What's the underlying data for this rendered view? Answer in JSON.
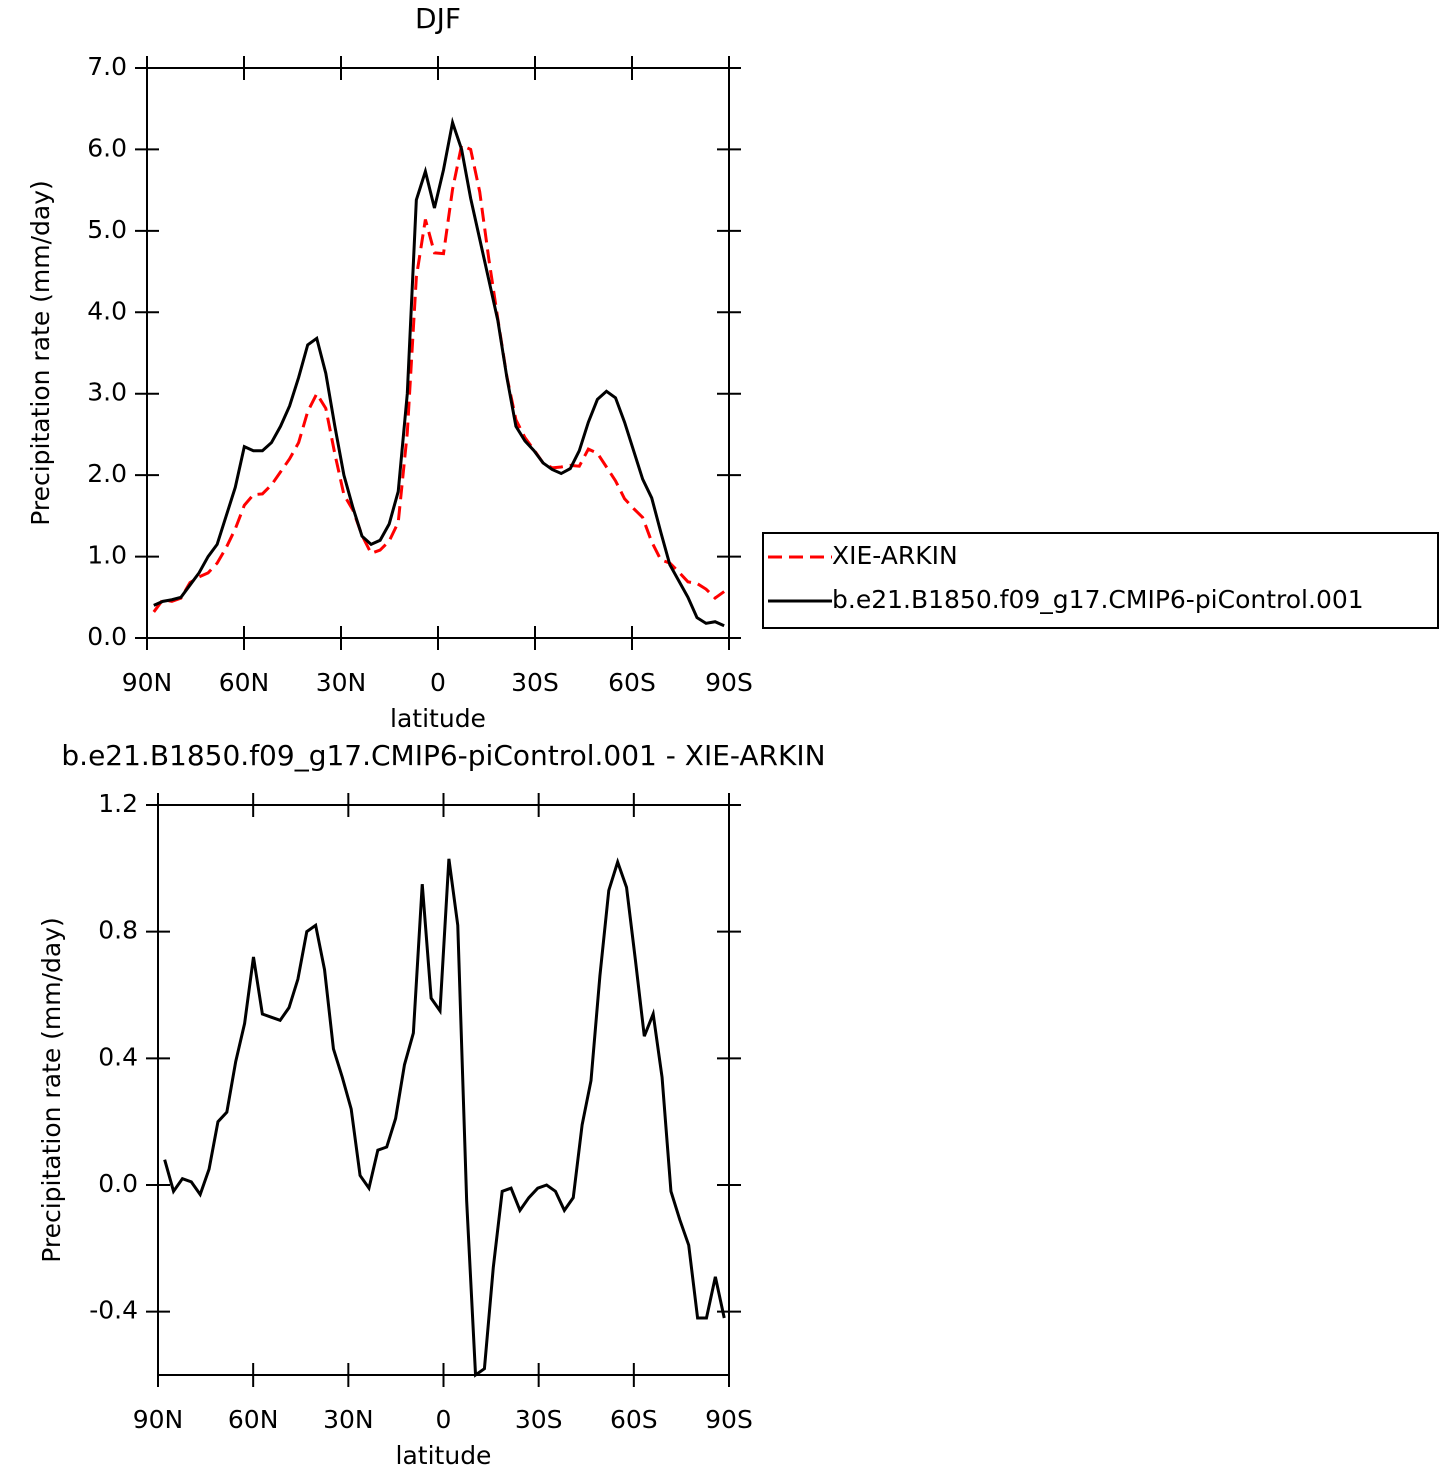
{
  "chart_data": [
    {
      "type": "line",
      "title": "DJF",
      "x_label": "latitude",
      "y_label": "Precipitation rate (mm/day)",
      "x": [
        87.9,
        85.1,
        82.3,
        79.5,
        76.7,
        73.9,
        71.1,
        68.3,
        65.5,
        62.7,
        59.9,
        57.1,
        54.3,
        51.5,
        48.7,
        45.9,
        43.1,
        40.3,
        37.5,
        34.7,
        31.9,
        29.1,
        26.3,
        23.5,
        20.7,
        17.9,
        15.1,
        12.3,
        9.5,
        6.7,
        3.9,
        1.1,
        -1.7,
        -4.5,
        -7.3,
        -10.1,
        -12.9,
        -15.7,
        -18.5,
        -21.3,
        -24.1,
        -26.9,
        -29.7,
        -32.5,
        -35.3,
        -38.1,
        -40.9,
        -43.7,
        -46.5,
        -49.3,
        -52.1,
        -54.9,
        -57.7,
        -60.5,
        -63.3,
        -66.1,
        -68.9,
        -71.7,
        -74.5,
        -77.3,
        -80.1,
        -82.9,
        -85.7,
        -88.5
      ],
      "series": [
        {
          "name": "XIE-ARKIN",
          "color": "#ff0000",
          "dash": true,
          "values": [
            0.32,
            0.47,
            0.45,
            0.49,
            0.68,
            0.75,
            0.8,
            0.92,
            1.11,
            1.34,
            1.63,
            1.76,
            1.77,
            1.88,
            2.04,
            2.2,
            2.4,
            2.78,
            3.0,
            2.82,
            2.26,
            1.76,
            1.57,
            1.26,
            1.04,
            1.08,
            1.19,
            1.42,
            2.52,
            4.43,
            5.14,
            4.73,
            4.72,
            5.51,
            6.05,
            6.0,
            5.48,
            4.66,
            3.92,
            3.21,
            2.68,
            2.46,
            2.31,
            2.15,
            2.09,
            2.1,
            2.12,
            2.11,
            2.32,
            2.27,
            2.1,
            1.93,
            1.71,
            1.59,
            1.48,
            1.18,
            0.96,
            0.92,
            0.81,
            0.69,
            0.67,
            0.6,
            0.49,
            0.57
          ]
        },
        {
          "name": "b.e21.B1850.f09_g17.CMIP6-piControl.001",
          "color": "#000000",
          "dash": false,
          "values": [
            0.4,
            0.45,
            0.47,
            0.5,
            0.65,
            0.8,
            1.0,
            1.15,
            1.5,
            1.85,
            2.35,
            2.3,
            2.3,
            2.4,
            2.6,
            2.85,
            3.2,
            3.6,
            3.68,
            3.25,
            2.6,
            2.0,
            1.6,
            1.25,
            1.15,
            1.2,
            1.4,
            1.8,
            3.0,
            5.38,
            5.73,
            5.28,
            5.75,
            6.33,
            6.0,
            5.4,
            4.9,
            4.4,
            3.9,
            3.2,
            2.6,
            2.42,
            2.3,
            2.15,
            2.07,
            2.02,
            2.08,
            2.3,
            2.65,
            2.93,
            3.03,
            2.95,
            2.65,
            2.3,
            1.95,
            1.72,
            1.3,
            0.9,
            0.7,
            0.5,
            0.25,
            0.18,
            0.2,
            0.15
          ]
        }
      ],
      "xlim": [
        90,
        -90
      ],
      "xticks": [
        {
          "value": 90,
          "label": "90N"
        },
        {
          "value": 60,
          "label": "60N"
        },
        {
          "value": 30,
          "label": "30N"
        },
        0,
        {
          "value": -30,
          "label": "30S"
        },
        {
          "value": -60,
          "label": "60S"
        },
        {
          "value": -90,
          "label": "90S"
        }
      ],
      "ylim": [
        0,
        7
      ],
      "yticks": [
        {
          "value": 0,
          "label": "0.0"
        },
        {
          "value": 1,
          "label": "1.0"
        },
        {
          "value": 2,
          "label": "2.0"
        },
        {
          "value": 3,
          "label": "3.0"
        },
        {
          "value": 4,
          "label": "4.0"
        },
        {
          "value": 5,
          "label": "5.0"
        },
        {
          "value": 6,
          "label": "6.0"
        },
        {
          "value": 7,
          "label": "7.0"
        }
      ],
      "legend": "right"
    },
    {
      "type": "line",
      "title": "b.e21.B1850.f09_g17.CMIP6-piControl.001 - XIE-ARKIN",
      "x_label": "latitude",
      "y_label": "Precipitation rate (mm/day)",
      "x": [
        87.9,
        85.1,
        82.3,
        79.5,
        76.7,
        73.9,
        71.1,
        68.3,
        65.5,
        62.7,
        59.9,
        57.1,
        54.3,
        51.5,
        48.7,
        45.9,
        43.1,
        40.3,
        37.5,
        34.7,
        31.9,
        29.1,
        26.3,
        23.5,
        20.7,
        17.9,
        15.1,
        12.3,
        9.5,
        6.7,
        3.9,
        1.1,
        -1.7,
        -4.5,
        -7.3,
        -10.1,
        -12.9,
        -15.7,
        -18.5,
        -21.3,
        -24.1,
        -26.9,
        -29.7,
        -32.5,
        -35.3,
        -38.1,
        -40.9,
        -43.7,
        -46.5,
        -49.3,
        -52.1,
        -54.9,
        -57.7,
        -60.5,
        -63.3,
        -66.1,
        -68.9,
        -71.7,
        -74.5,
        -77.3,
        -80.1,
        -82.9,
        -85.7,
        -88.5
      ],
      "series": [
        {
          "color": "#000000",
          "dash": false,
          "values": [
            0.08,
            -0.02,
            0.02,
            0.01,
            -0.03,
            0.05,
            0.2,
            0.23,
            0.39,
            0.51,
            0.72,
            0.54,
            0.53,
            0.52,
            0.56,
            0.65,
            0.8,
            0.82,
            0.68,
            0.43,
            0.34,
            0.24,
            0.03,
            -0.01,
            0.11,
            0.12,
            0.21,
            0.38,
            0.48,
            0.95,
            0.59,
            0.55,
            1.03,
            0.82,
            -0.05,
            -0.6,
            -0.58,
            -0.26,
            -0.02,
            -0.01,
            -0.08,
            -0.04,
            -0.01,
            0.0,
            -0.02,
            -0.08,
            -0.04,
            0.19,
            0.33,
            0.66,
            0.93,
            1.02,
            0.94,
            0.71,
            0.47,
            0.54,
            0.34,
            -0.02,
            -0.11,
            -0.19,
            -0.42,
            -0.42,
            -0.29,
            -0.42
          ]
        }
      ],
      "xlim": [
        90,
        -90
      ],
      "xticks": [
        {
          "value": 90,
          "label": "90N"
        },
        {
          "value": 60,
          "label": "60N"
        },
        {
          "value": 30,
          "label": "30N"
        },
        0,
        {
          "value": -30,
          "label": "30S"
        },
        {
          "value": -60,
          "label": "60S"
        },
        {
          "value": -90,
          "label": "90S"
        }
      ],
      "ylim": [
        -0.6,
        1.2
      ],
      "yticks": [
        {
          "value": -0.4,
          "label": "-0.4"
        },
        {
          "value": 0,
          "label": "0.0"
        },
        {
          "value": 0.4,
          "label": "0.4"
        },
        {
          "value": 0.8,
          "label": "0.8"
        },
        {
          "value": 1.2,
          "label": "1.2"
        }
      ]
    }
  ]
}
